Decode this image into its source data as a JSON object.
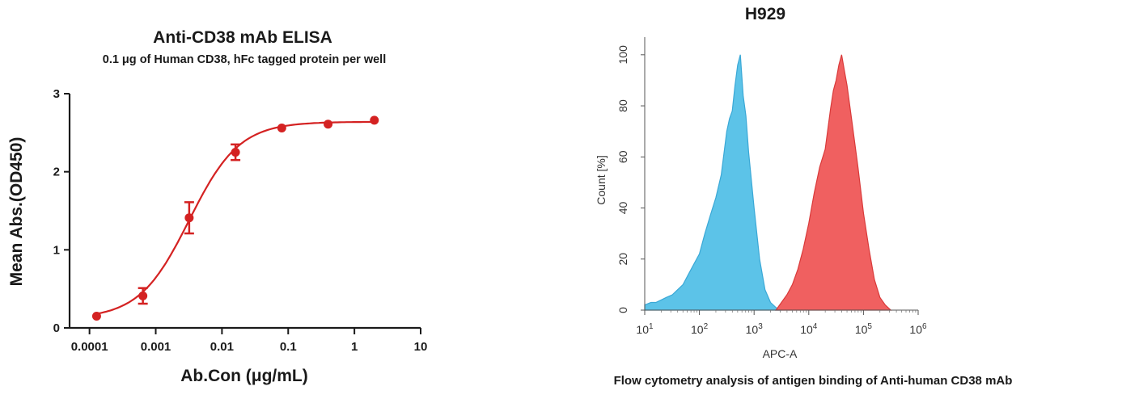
{
  "chart_data": [
    {
      "type": "scatter",
      "title": "Anti-CD38 mAb ELISA",
      "subtitle": "0.1 μg of Human CD38, hFc tagged protein per well",
      "xlabel": "Ab.Con (μg/mL)",
      "ylabel": "Mean Abs.(OD450)",
      "xscale": "log",
      "xlim": [
        5e-05,
        10
      ],
      "ylim": [
        0,
        3
      ],
      "x_ticks": [
        "0.0001",
        "0.001",
        "0.01",
        "0.1",
        "1",
        "10"
      ],
      "y_ticks": [
        "0",
        "1",
        "2",
        "3"
      ],
      "grid": false,
      "color": "#d42222",
      "series": [
        {
          "x": [
            0.000128,
            0.00064,
            0.0032,
            0.016,
            0.08,
            0.4,
            2.0
          ],
          "y": [
            0.15,
            0.41,
            1.41,
            2.25,
            2.56,
            2.61,
            2.66
          ],
          "error": [
            0.02,
            0.1,
            0.2,
            0.1,
            0.03,
            0.02,
            0.02
          ]
        }
      ],
      "fit": "4PL sigmoid"
    },
    {
      "type": "area",
      "title": "H929",
      "xlabel": "APC-A",
      "ylabel": "Count [%]",
      "xscale": "log",
      "xlim": [
        10,
        1000000
      ],
      "ylim": [
        0,
        105
      ],
      "x_ticks": [
        "1",
        "2",
        "3",
        "4",
        "5",
        "6"
      ],
      "x_tick_base": "10",
      "y_ticks": [
        "0",
        "20",
        "40",
        "60",
        "80",
        "100"
      ],
      "grid": false,
      "series": [
        {
          "color": "#5cc3e8",
          "x": [
            10,
            13,
            16,
            20,
            25,
            32,
            40,
            50,
            63,
            79,
            100,
            126,
            158,
            200,
            251,
            316,
            355,
            398,
            447,
            500,
            560,
            631,
            708,
            794,
            1000,
            1259,
            1585,
            1995,
            2512,
            3162
          ],
          "y": [
            2,
            3,
            3,
            4,
            5,
            6,
            8,
            10,
            14,
            18,
            22,
            30,
            37,
            44,
            53,
            70,
            75,
            78,
            88,
            96,
            100,
            84,
            76,
            62,
            40,
            20,
            8,
            3,
            1,
            0
          ]
        },
        {
          "color": "#f06060",
          "x": [
            2512,
            3162,
            3981,
            5012,
            6310,
            7943,
            10000,
            12589,
            15849,
            19953,
            25119,
            28184,
            31623,
            35481,
            39811,
            44668,
            50119,
            56234,
            63096,
            79433,
            100000,
            125893,
            158489,
            199526,
            251189,
            316228
          ],
          "y": [
            0,
            3,
            6,
            10,
            16,
            24,
            34,
            46,
            56,
            63,
            79,
            86,
            90,
            96,
            100,
            94,
            88,
            80,
            72,
            56,
            38,
            24,
            12,
            5,
            2,
            0
          ]
        }
      ],
      "caption": "Flow cytometry analysis of antigen binding of Anti-human CD38 mAb"
    }
  ]
}
